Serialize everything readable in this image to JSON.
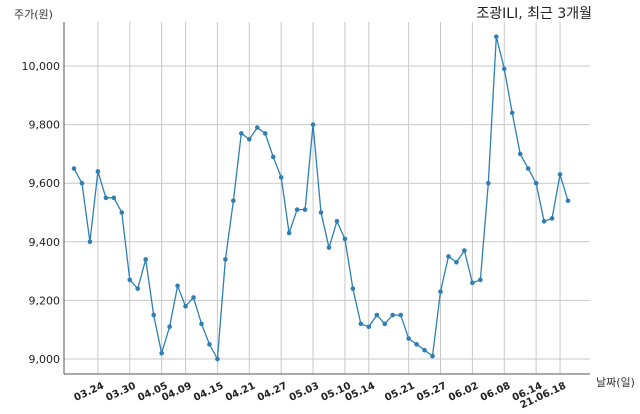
{
  "chart_data": {
    "type": "line",
    "title": "조광ILI, 최근 3개월",
    "xlabel": "날짜(일)",
    "ylabel": "주가(원)",
    "ylim": [
      8950,
      10150
    ],
    "yticks": [
      9000,
      9200,
      9400,
      9600,
      9800,
      10000
    ],
    "ytick_labels": [
      "9,000",
      "9,200",
      "9,400",
      "9,600",
      "9,800",
      "10,000"
    ],
    "grid": true,
    "line_color": "#2f7fb5",
    "xtick_labels": [
      "03.24",
      "03.30",
      "04.05",
      "04.09",
      "04.15",
      "04.21",
      "04.27",
      "05.03",
      "05.10",
      "05.14",
      "05.21",
      "05.27",
      "06.02",
      "06.08",
      "06.14",
      "21.06.18"
    ],
    "xtick_positions": [
      3,
      7,
      11,
      14,
      18,
      22,
      26,
      30,
      34,
      37,
      42,
      46,
      50,
      54,
      58,
      61
    ],
    "series": [
      {
        "values": [
          9650,
          9600,
          9400,
          9640,
          9550,
          9550,
          9500,
          9270,
          9240,
          9340,
          9150,
          9020,
          9110,
          9250,
          9180,
          9210,
          9120,
          9050,
          9000,
          9340,
          9540,
          9770,
          9750,
          9790,
          9770,
          9690,
          9620,
          9430,
          9510,
          9510,
          9800,
          9500,
          9380,
          9470,
          9410,
          9240,
          9120,
          9110,
          9150,
          9120,
          9150,
          9150,
          9070,
          9050,
          9030,
          9010,
          9230,
          9350,
          9330,
          9370,
          9260,
          9270,
          9600,
          10100,
          9990,
          9840,
          9700,
          9650,
          9600,
          9470,
          9480,
          9630,
          9540
        ]
      }
    ]
  }
}
